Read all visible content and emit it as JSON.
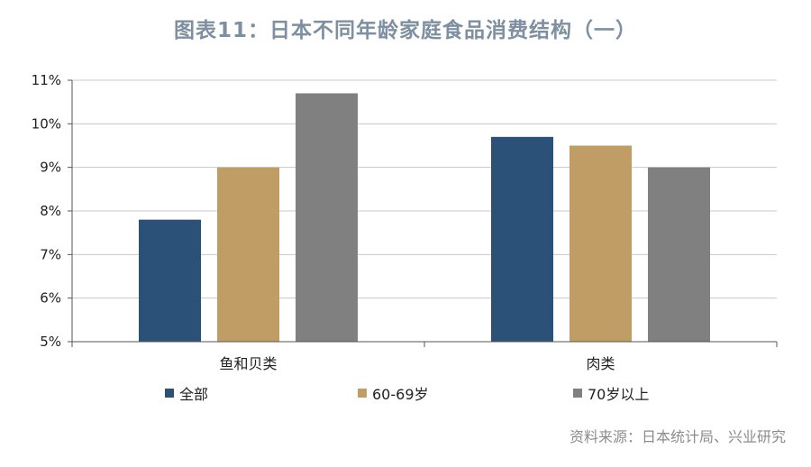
{
  "title": "图表11：日本不同年龄家庭食品消费结构（一）",
  "source": "资料来源：日本统计局、兴业研究",
  "chart_data": {
    "type": "bar",
    "categories": [
      "鱼和贝类",
      "肉类"
    ],
    "series": [
      {
        "name": "全部",
        "values": [
          7.8,
          9.7
        ],
        "color": "#2b5179"
      },
      {
        "name": "60-69岁",
        "values": [
          9.0,
          9.5
        ],
        "color": "#c19d66"
      },
      {
        "name": "70岁以上",
        "values": [
          10.7,
          9.0
        ],
        "color": "#808080"
      }
    ],
    "ylim": [
      5,
      11
    ],
    "yticks": [
      "5%",
      "6%",
      "7%",
      "8%",
      "9%",
      "10%",
      "11%"
    ],
    "grid": true,
    "legend_position": "bottom"
  }
}
